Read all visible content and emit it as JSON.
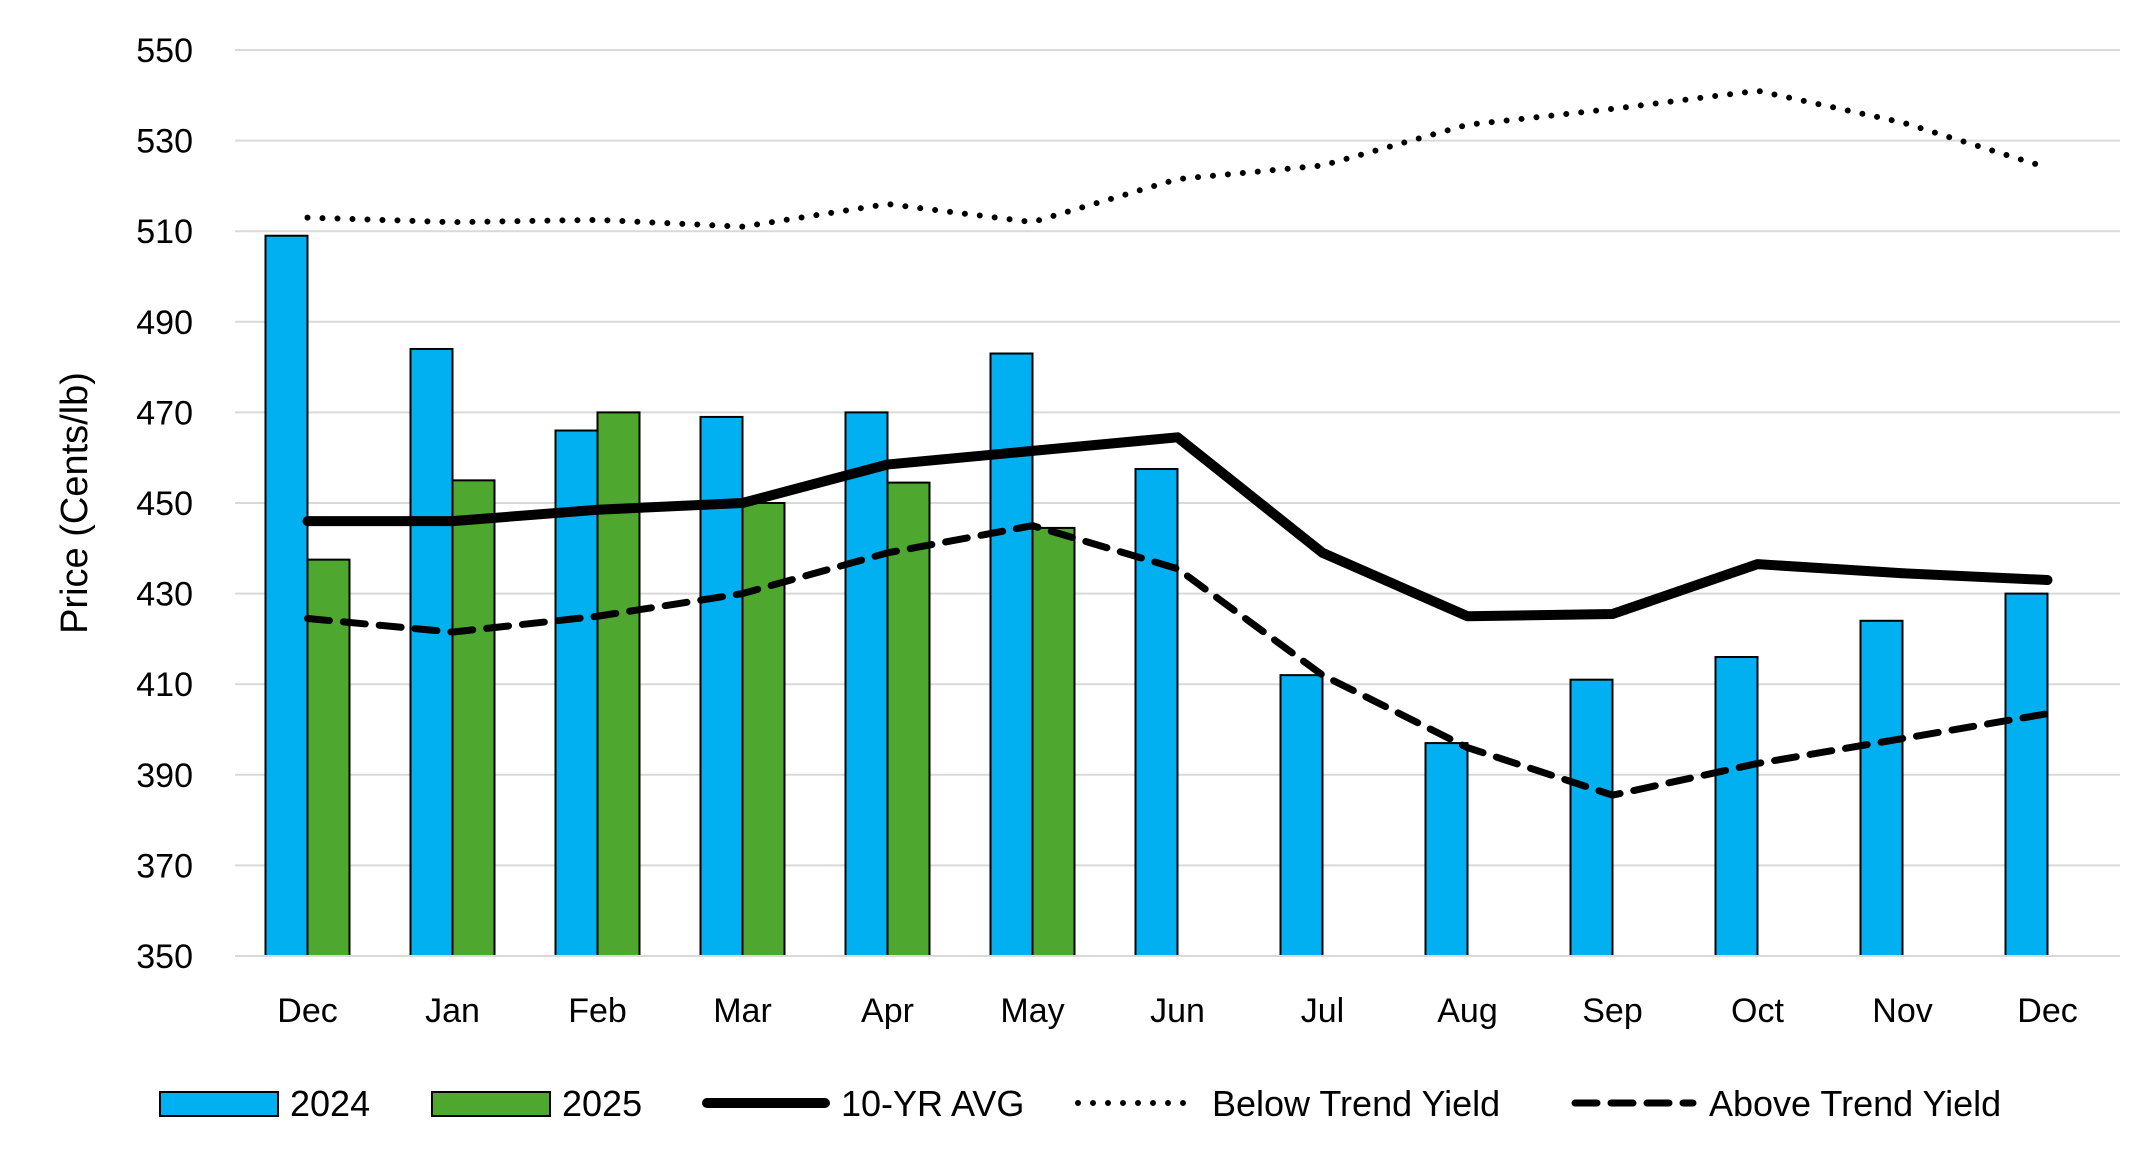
{
  "chart_data": {
    "type": "bar",
    "title": "",
    "xlabel": "",
    "ylabel": "Price (Cents/lb)",
    "ylim": [
      350,
      550
    ],
    "ytick_step": 20,
    "yticks": [
      "350",
      "370",
      "390",
      "410",
      "430",
      "450",
      "470",
      "490",
      "510",
      "530",
      "550"
    ],
    "grid": true,
    "legend_position": "bottom",
    "categories": [
      "Dec",
      "Jan",
      "Feb",
      "Mar",
      "Apr",
      "May",
      "Jun",
      "Jul",
      "Aug",
      "Sep",
      "Oct",
      "Nov",
      "Dec"
    ],
    "bar_series": [
      {
        "name": "2024",
        "color": "#00B0F0",
        "values": [
          509,
          484,
          466,
          469,
          470,
          483,
          457.5,
          412,
          397,
          411,
          416,
          424,
          430
        ]
      },
      {
        "name": "2025",
        "color": "#4EA72E",
        "values": [
          437.5,
          455,
          470,
          450,
          454.5,
          444.5,
          null,
          null,
          null,
          null,
          null,
          null,
          null
        ]
      }
    ],
    "line_series": [
      {
        "name": "10-YR AVG",
        "color": "#000000",
        "style": "solid",
        "values": [
          446,
          446,
          448.5,
          450,
          458.5,
          461.5,
          464.5,
          439,
          425,
          425.5,
          436.5,
          434.5,
          433
        ]
      },
      {
        "name": "Below Trend Yield",
        "color": "#000000",
        "style": "dotted",
        "values": [
          513,
          512,
          512.5,
          511,
          516,
          512,
          521.5,
          524.5,
          533.5,
          537,
          541,
          534,
          524
        ]
      },
      {
        "name": "Above Trend Yield",
        "color": "#000000",
        "style": "dashed",
        "values": [
          424.5,
          421.5,
          425,
          430,
          439,
          445,
          435.5,
          412,
          396,
          385.5,
          392.5,
          398,
          403.5
        ]
      }
    ]
  }
}
